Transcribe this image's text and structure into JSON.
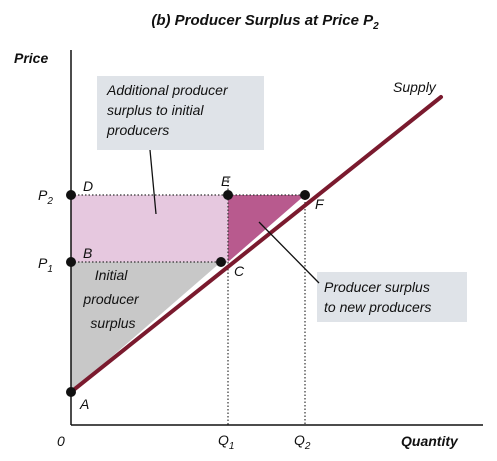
{
  "title": {
    "text": "(b) Producer Surplus at Price P",
    "subscript": "2"
  },
  "axes": {
    "y_label": "Price",
    "x_label": "Quantity",
    "origin_label": "0"
  },
  "curve_label": "Supply",
  "price_ticks": [
    {
      "main": "P",
      "sub": "2"
    },
    {
      "main": "P",
      "sub": "1"
    }
  ],
  "quantity_ticks": [
    {
      "main": "Q",
      "sub": "1"
    },
    {
      "main": "Q",
      "sub": "2"
    }
  ],
  "points": [
    "A",
    "B",
    "C",
    "D",
    "E",
    "F"
  ],
  "annotations": {
    "additional": [
      "Additional producer",
      "surplus to initial",
      "producers"
    ],
    "new": [
      "Producer surplus",
      "to new producers"
    ],
    "initial": [
      "Initial",
      "producer",
      "surplus"
    ]
  },
  "colors": {
    "supply": "#7a1a2e",
    "initial_region": "#c8c8c8",
    "additional_region": "#e6c8df",
    "new_region": "#b85a8e",
    "callout_box": "#dfe3e8"
  }
}
